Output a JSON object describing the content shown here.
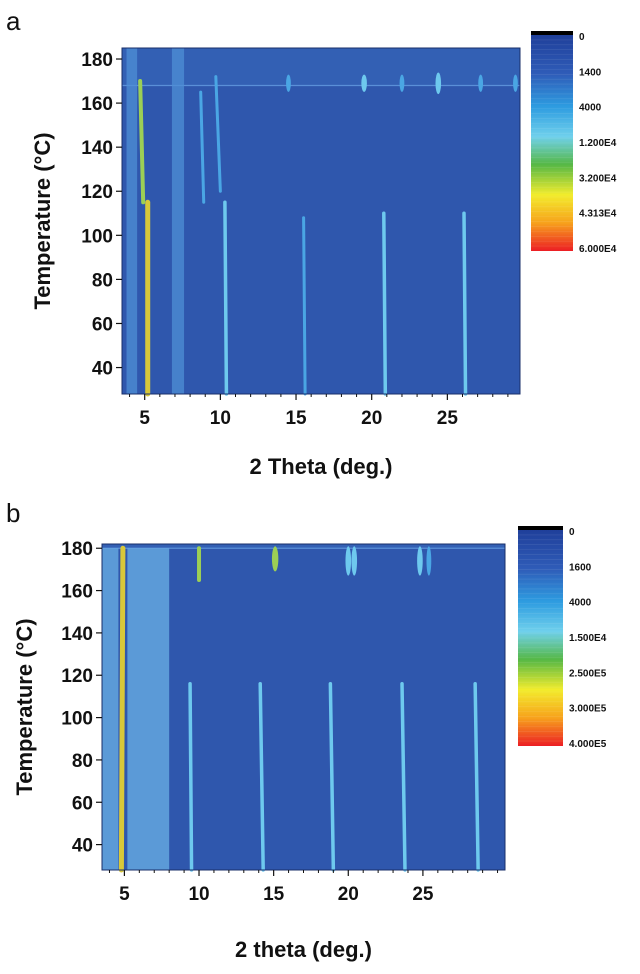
{
  "colors": {
    "background": "#2f57ad",
    "peak_weak": "#4aa6e4",
    "peak_medium": "#6ec9ee",
    "peak_strong": "#9ccf55",
    "peak_max": "#d8c83a",
    "band": "#4f8fd6",
    "band_light": "#6bb0e6"
  },
  "chart_data": [
    {
      "panel": "a",
      "type": "heatmap",
      "xlabel": "2 Theta (deg.)",
      "ylabel": "Temperature (°C)",
      "xlim": [
        3.5,
        29.8
      ],
      "ylim": [
        28,
        185
      ],
      "xticks": [
        5,
        10,
        15,
        20,
        25
      ],
      "yticks": [
        40,
        60,
        80,
        100,
        120,
        140,
        160,
        180
      ],
      "colorbar_labels": [
        "0",
        "1400",
        "4000",
        "1.200E4",
        "3.200E4",
        "4.313E4",
        "6.000E4"
      ],
      "transition_temperature": 168,
      "bands": [
        {
          "x0": 3.8,
          "x1": 4.5,
          "level": "weak",
          "t0": 28,
          "t1": 185
        },
        {
          "x0": 6.8,
          "x1": 7.6,
          "level": "weak",
          "t0": 28,
          "t1": 185
        }
      ],
      "peaks": [
        {
          "x_low": 5.2,
          "x_high": 5.2,
          "t_start": 28,
          "t_end": 115,
          "level": "max"
        },
        {
          "x_low": 4.9,
          "x_high": 4.7,
          "t_start": 115,
          "t_end": 170,
          "level": "strong"
        },
        {
          "x_low": 10.4,
          "x_high": 10.3,
          "t_start": 28,
          "t_end": 115,
          "level": "medium"
        },
        {
          "x_low": 20.9,
          "x_high": 20.8,
          "t_start": 28,
          "t_end": 110,
          "level": "medium"
        },
        {
          "x_low": 26.2,
          "x_high": 26.1,
          "t_start": 28,
          "t_end": 110,
          "level": "medium"
        },
        {
          "x_low": 15.6,
          "x_high": 15.5,
          "t_start": 28,
          "t_end": 108,
          "level": "weak"
        },
        {
          "x_low": 8.9,
          "x_high": 8.7,
          "t_start": 115,
          "t_end": 165,
          "level": "weak"
        },
        {
          "x_low": 10.0,
          "x_high": 9.7,
          "t_start": 120,
          "t_end": 172,
          "level": "weak"
        },
        {
          "x_low": 14.5,
          "x_high": 14.5,
          "t_start": 166,
          "t_end": 172,
          "level": "weak"
        },
        {
          "x_low": 19.5,
          "x_high": 19.5,
          "t_start": 166,
          "t_end": 172,
          "level": "medium"
        },
        {
          "x_low": 22.0,
          "x_high": 22.0,
          "t_start": 166,
          "t_end": 172,
          "level": "weak"
        },
        {
          "x_low": 24.4,
          "x_high": 24.4,
          "t_start": 165,
          "t_end": 173,
          "level": "medium"
        },
        {
          "x_low": 27.2,
          "x_high": 27.2,
          "t_start": 166,
          "t_end": 172,
          "level": "weak"
        },
        {
          "x_low": 29.5,
          "x_high": 29.5,
          "t_start": 166,
          "t_end": 172,
          "level": "weak"
        }
      ]
    },
    {
      "panel": "b",
      "type": "heatmap",
      "xlabel": "2 theta (deg.)",
      "ylabel": "Temperature (°C)",
      "xlim": [
        3.5,
        30.5
      ],
      "ylim": [
        28,
        182
      ],
      "xticks": [
        5,
        10,
        15,
        20,
        25
      ],
      "yticks": [
        40,
        60,
        80,
        100,
        120,
        140,
        160,
        180
      ],
      "colorbar_labels": [
        "0",
        "1600",
        "4000",
        "1.500E4",
        "2.500E5",
        "3.000E5",
        "4.000E5"
      ],
      "transition_temperature": 180,
      "bands": [
        {
          "x0": 3.5,
          "x1": 4.6,
          "level": "weak",
          "t0": 28,
          "t1": 180
        },
        {
          "x0": 5.2,
          "x1": 8.0,
          "level": "weak",
          "t0": 28,
          "t1": 180
        }
      ],
      "peaks": [
        {
          "x_low": 4.8,
          "x_high": 4.9,
          "t_start": 28,
          "t_end": 180,
          "level": "max"
        },
        {
          "x_low": 9.5,
          "x_high": 9.4,
          "t_start": 28,
          "t_end": 116,
          "level": "medium"
        },
        {
          "x_low": 14.3,
          "x_high": 14.1,
          "t_start": 28,
          "t_end": 116,
          "level": "medium"
        },
        {
          "x_low": 19.0,
          "x_high": 18.8,
          "t_start": 28,
          "t_end": 116,
          "level": "medium"
        },
        {
          "x_low": 23.8,
          "x_high": 23.6,
          "t_start": 28,
          "t_end": 116,
          "level": "medium"
        },
        {
          "x_low": 28.7,
          "x_high": 28.5,
          "t_start": 28,
          "t_end": 116,
          "level": "medium"
        },
        {
          "x_low": 10.0,
          "x_high": 10.0,
          "t_start": 165,
          "t_end": 180,
          "level": "strong"
        },
        {
          "x_low": 15.1,
          "x_high": 15.1,
          "t_start": 170,
          "t_end": 180,
          "level": "strong"
        },
        {
          "x_low": 20.0,
          "x_high": 20.0,
          "t_start": 168,
          "t_end": 180,
          "level": "medium"
        },
        {
          "x_low": 20.4,
          "x_high": 20.4,
          "t_start": 168,
          "t_end": 180,
          "level": "medium"
        },
        {
          "x_low": 24.8,
          "x_high": 24.8,
          "t_start": 168,
          "t_end": 180,
          "level": "medium"
        },
        {
          "x_low": 25.4,
          "x_high": 25.4,
          "t_start": 168,
          "t_end": 180,
          "level": "weak"
        }
      ]
    }
  ]
}
